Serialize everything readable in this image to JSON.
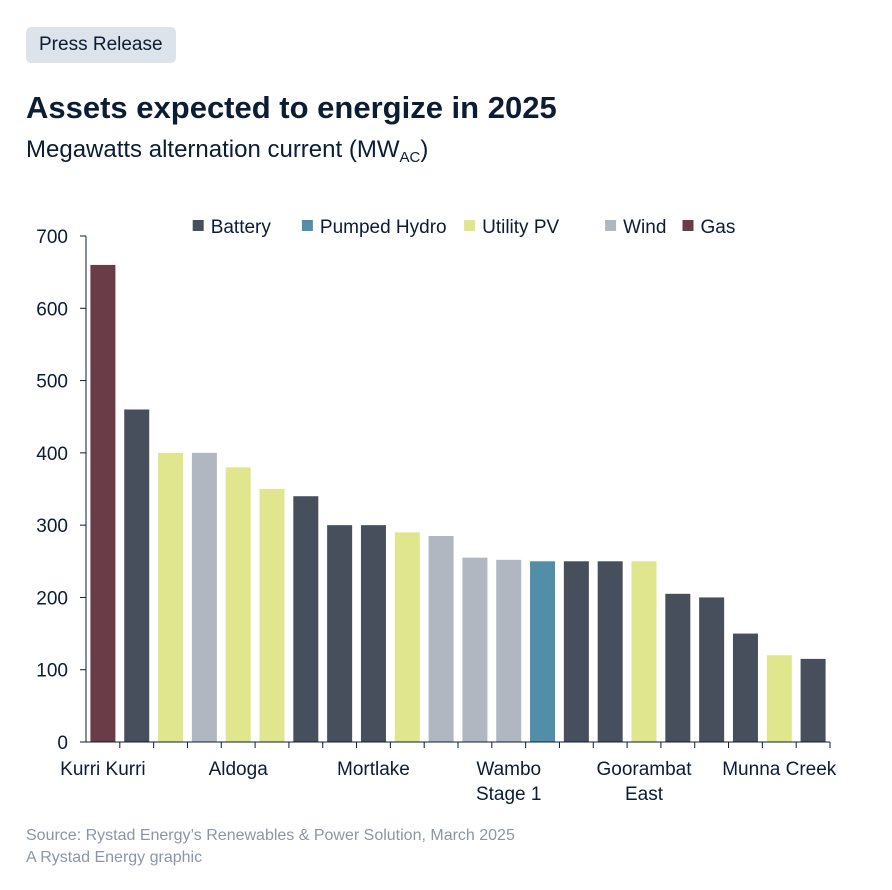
{
  "badge": "Press Release",
  "title": "Assets expected to energize in 2025",
  "subtitle_main": "Megawatts alternation current (MW",
  "subtitle_sub": "AC",
  "subtitle_end": ")",
  "source": "Source: Rystad Energy’s Renewables & Power Solution, March 2025",
  "credit": "A Rystad Energy graphic",
  "chart_data": {
    "type": "bar",
    "ylim": [
      0,
      700
    ],
    "yticks": [
      0,
      100,
      200,
      300,
      400,
      500,
      600,
      700
    ],
    "grid": false,
    "legend": "top",
    "legend_entries": [
      {
        "name": "Battery",
        "color": "#474f5c"
      },
      {
        "name": "Pumped Hydro",
        "color": "#528ea8"
      },
      {
        "name": "Utility PV",
        "color": "#dfe68e"
      },
      {
        "name": "Wind",
        "color": "#b1b7c0"
      },
      {
        "name": "Gas",
        "color": "#6a3c47"
      }
    ],
    "category_labels": [
      {
        "index": 0,
        "lines": [
          "Kurri Kurri"
        ]
      },
      {
        "index": 4,
        "lines": [
          "Aldoga"
        ]
      },
      {
        "index": 8,
        "lines": [
          "Mortlake"
        ]
      },
      {
        "index": 12,
        "lines": [
          "Wambo",
          "Stage 1"
        ]
      },
      {
        "index": 16,
        "lines": [
          "Goorambat",
          "East"
        ]
      },
      {
        "index": 20,
        "lines": [
          "Munna Creek"
        ]
      }
    ],
    "bars": [
      {
        "type": "Gas",
        "value": 660
      },
      {
        "type": "Battery",
        "value": 460
      },
      {
        "type": "Utility PV",
        "value": 400
      },
      {
        "type": "Wind",
        "value": 400
      },
      {
        "type": "Utility PV",
        "value": 380
      },
      {
        "type": "Utility PV",
        "value": 350
      },
      {
        "type": "Battery",
        "value": 340
      },
      {
        "type": "Battery",
        "value": 300
      },
      {
        "type": "Battery",
        "value": 300
      },
      {
        "type": "Utility PV",
        "value": 290
      },
      {
        "type": "Wind",
        "value": 285
      },
      {
        "type": "Wind",
        "value": 255
      },
      {
        "type": "Wind",
        "value": 252
      },
      {
        "type": "Pumped Hydro",
        "value": 250
      },
      {
        "type": "Battery",
        "value": 250
      },
      {
        "type": "Battery",
        "value": 250
      },
      {
        "type": "Utility PV",
        "value": 250
      },
      {
        "type": "Battery",
        "value": 205
      },
      {
        "type": "Battery",
        "value": 200
      },
      {
        "type": "Battery",
        "value": 150
      },
      {
        "type": "Utility PV",
        "value": 120
      },
      {
        "type": "Battery",
        "value": 115
      }
    ]
  }
}
